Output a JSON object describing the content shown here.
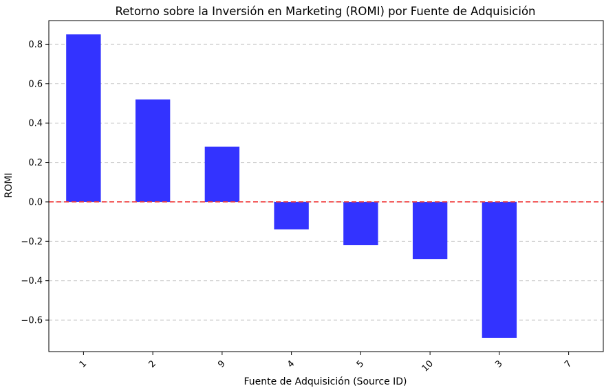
{
  "chart_data": {
    "type": "bar",
    "title": "Retorno sobre la Inversión en Marketing (ROMI) por Fuente de Adquisición",
    "xlabel": "Fuente de Adquisición (Source ID)",
    "ylabel": "ROMI",
    "categories": [
      "1",
      "2",
      "9",
      "4",
      "5",
      "10",
      "3",
      "7"
    ],
    "values": [
      0.85,
      0.52,
      0.28,
      -0.14,
      -0.22,
      -0.29,
      -0.69,
      0.0
    ],
    "ylim": [
      -0.76,
      0.92
    ],
    "yticks": [
      -0.6,
      -0.4,
      -0.2,
      0.0,
      0.2,
      0.4,
      0.6,
      0.8
    ],
    "ytick_labels": [
      "−0.6",
      "−0.4",
      "−0.2",
      "0.0",
      "0.2",
      "0.4",
      "0.6",
      "0.8"
    ],
    "reference_line": {
      "y": 0.0,
      "color": "#f03c3c",
      "style": "dashed"
    },
    "grid": {
      "axis": "y",
      "style": "dashed"
    },
    "x_tick_rotation": "45 degrees",
    "bar_color": "#3333ff"
  }
}
